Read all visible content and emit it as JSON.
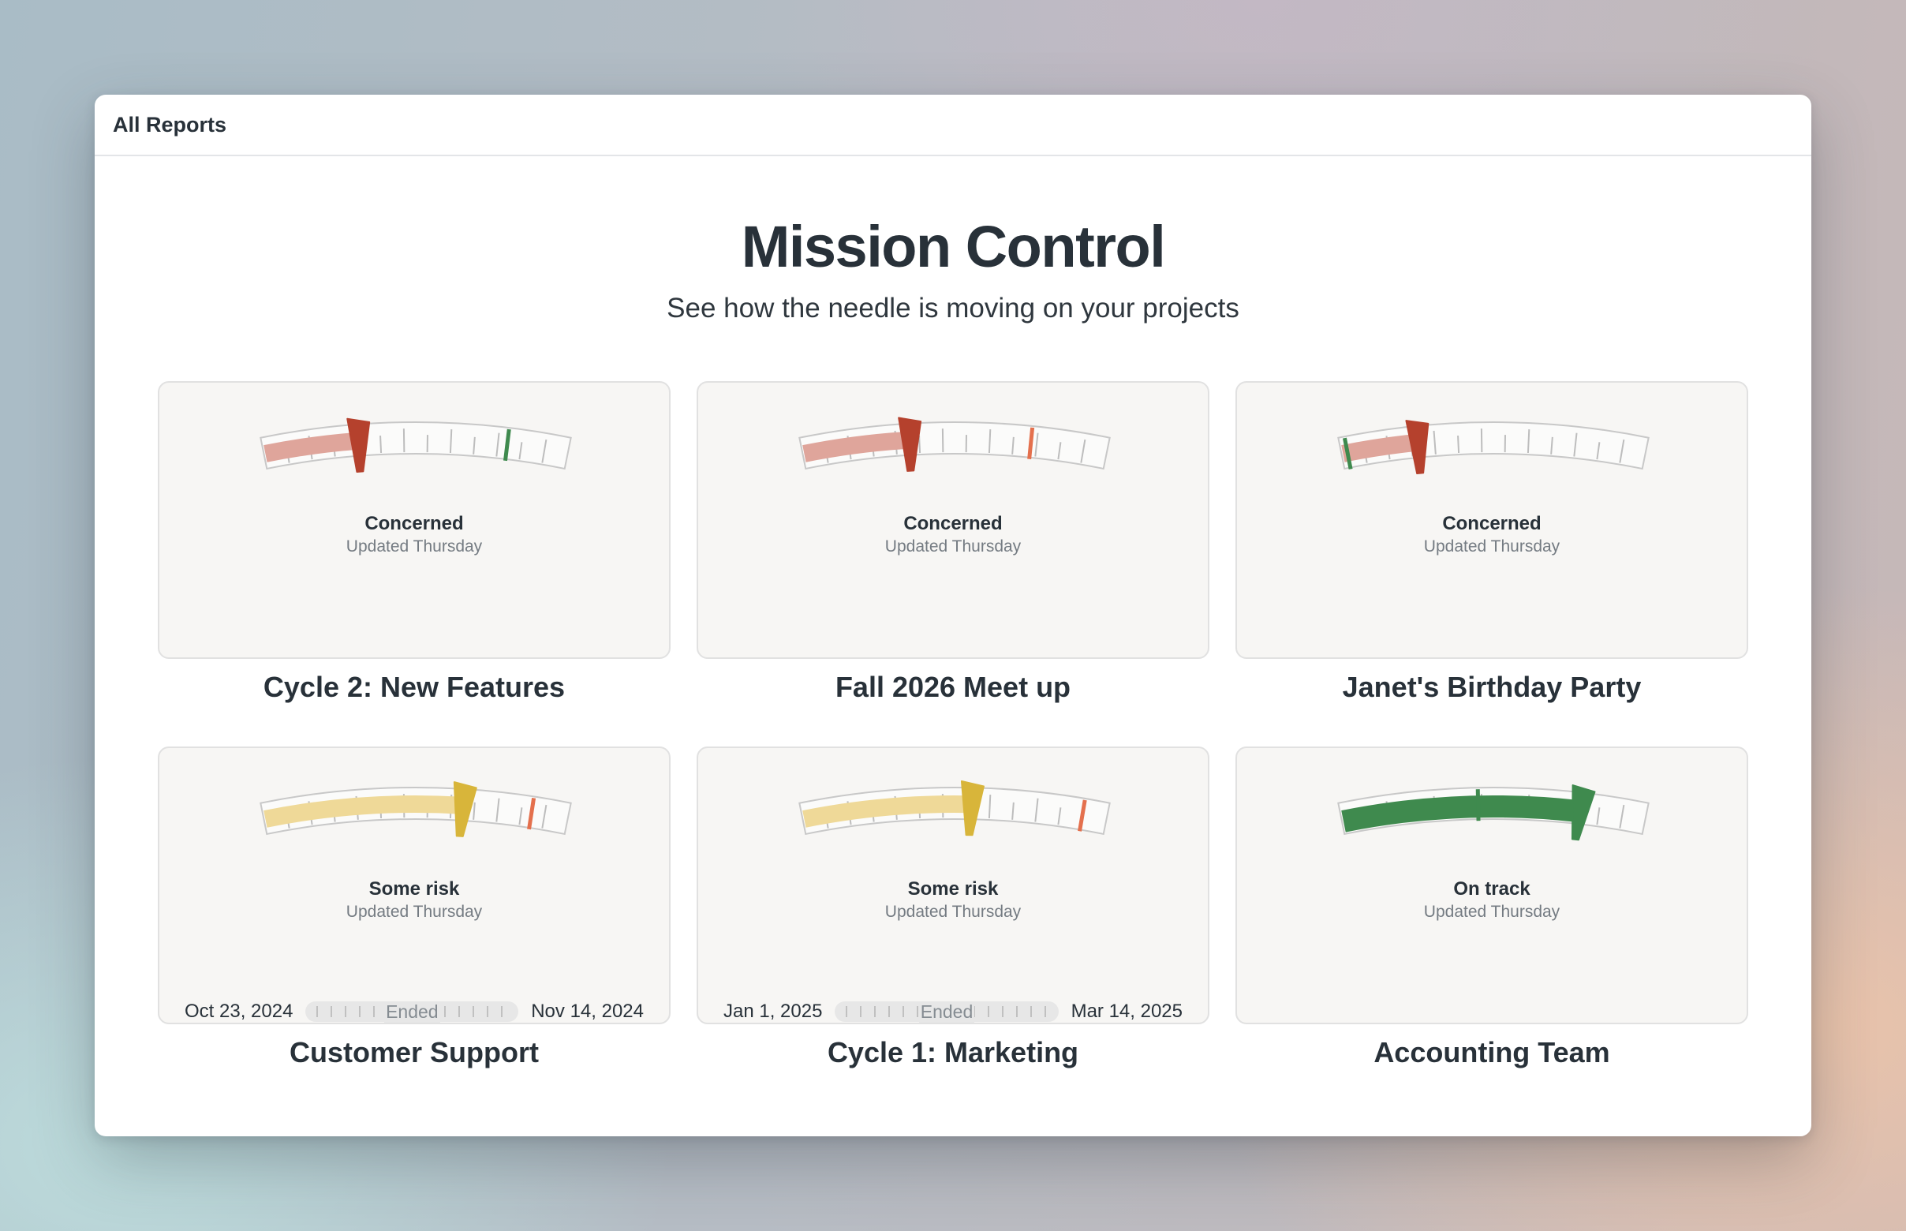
{
  "topbar": {
    "link": "All Reports"
  },
  "header": {
    "title": "Mission Control",
    "subtitle": "See how the needle is moving on your projects"
  },
  "colors": {
    "red": "#b5412d",
    "red_fill": "#dfa59b",
    "yellow": "#d8b53a",
    "yellow_fill": "#efd998",
    "green": "#3f8a4e",
    "orange_marker": "#e4704d"
  },
  "projects": [
    {
      "name": "Cycle 2: New Features",
      "status": "Concerned",
      "updated": "Updated Thursday",
      "needle": 0.31,
      "tone": "red",
      "marker": 0.8,
      "marker_color": "green",
      "timeline": null
    },
    {
      "name": "Fall 2026 Meet up",
      "status": "Concerned",
      "updated": "Updated Thursday",
      "needle": 0.35,
      "tone": "red",
      "marker": 0.75,
      "marker_color": "orange",
      "timeline": null
    },
    {
      "name": "Janet's Birthday Party",
      "status": "Concerned",
      "updated": "Updated Thursday",
      "needle": 0.25,
      "tone": "red",
      "marker": 0.02,
      "marker_color": "green",
      "timeline": null
    },
    {
      "name": "Customer Support",
      "status": "Some risk",
      "updated": "Updated Thursday",
      "needle": 0.65,
      "tone": "yellow",
      "marker": 0.88,
      "marker_color": "orange",
      "timeline": {
        "start": "Oct 23, 2024",
        "end": "Nov 14, 2024",
        "label": "Ended"
      }
    },
    {
      "name": "Cycle 1: Marketing",
      "status": "Some risk",
      "updated": "Updated Thursday",
      "needle": 0.55,
      "tone": "yellow",
      "marker": 0.92,
      "marker_color": "orange",
      "timeline": {
        "start": "Jan 1, 2025",
        "end": "Mar 14, 2025",
        "label": "Ended"
      }
    },
    {
      "name": "Accounting Team",
      "status": "On track",
      "updated": "Updated Thursday",
      "needle": 0.78,
      "tone": "green",
      "marker": 0.45,
      "marker_color": "green",
      "timeline": null
    }
  ]
}
